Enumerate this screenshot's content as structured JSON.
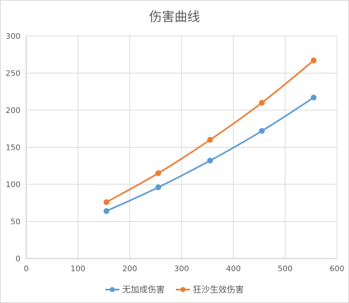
{
  "chart_data": {
    "type": "scatter",
    "title": "伤害曲线",
    "xlabel": "",
    "ylabel": "",
    "xlim": [
      0,
      600
    ],
    "ylim": [
      0,
      300
    ],
    "xticks": [
      "0",
      "100",
      "200",
      "300",
      "400",
      "500",
      "600"
    ],
    "yticks": [
      "0",
      "50",
      "100",
      "150",
      "200",
      "250",
      "300"
    ],
    "grid": true,
    "legend_position": "bottom",
    "series": [
      {
        "name": "无加成伤害",
        "color": "#5B9BD5",
        "points": [
          [
            155,
            64
          ],
          [
            255,
            96
          ],
          [
            355,
            132
          ],
          [
            455,
            172
          ],
          [
            555,
            217
          ]
        ]
      },
      {
        "name": "狂沙生效伤害",
        "color": "#ED7D31",
        "points": [
          [
            155,
            76
          ],
          [
            255,
            115
          ],
          [
            355,
            160
          ],
          [
            455,
            210
          ],
          [
            555,
            267
          ]
        ]
      }
    ]
  }
}
